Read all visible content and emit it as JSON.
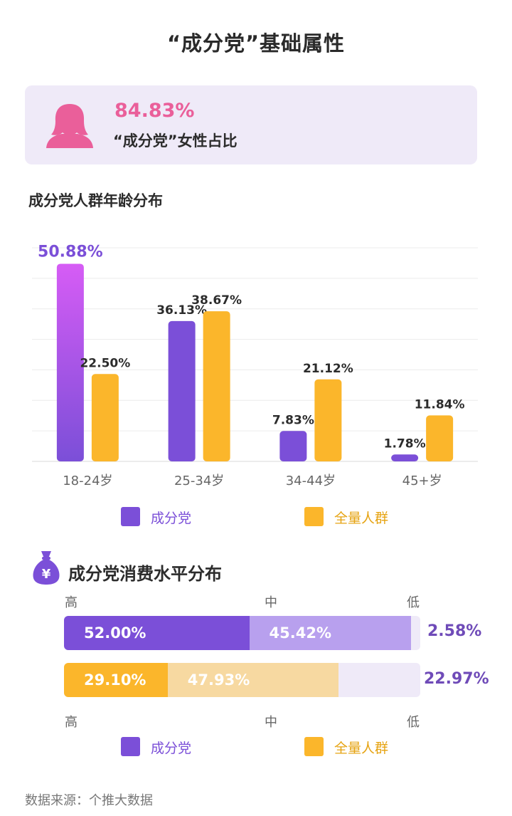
{
  "title": "“成分党”基础属性",
  "female": {
    "percent": "84.83%",
    "label": "“成分党”女性占比",
    "icon": "woman-icon",
    "color": "#ea5f9a"
  },
  "colors": {
    "chengfen": "#7b4fd8",
    "chengfen_top": "#d65cf5",
    "quanliang": "#fbb62b",
    "card_bg": "#efeaf8"
  },
  "legend": {
    "items": [
      "成分党",
      "全量人群"
    ]
  },
  "chart_data": [
    {
      "type": "bar",
      "title": "成分党人群年龄分布",
      "categories": [
        "18-24岁",
        "25-34岁",
        "34-44岁",
        "45+岁"
      ],
      "series": [
        {
          "name": "成分党",
          "values": [
            50.88,
            36.13,
            7.83,
            1.78
          ],
          "labels": [
            "50.88%",
            "36.13%",
            "7.83%",
            "1.78%"
          ]
        },
        {
          "name": "全量人群",
          "values": [
            22.5,
            38.67,
            21.12,
            11.84
          ],
          "labels": [
            "22.50%",
            "38.67%",
            "21.12%",
            "11.84%"
          ]
        }
      ],
      "ylim": [
        0,
        55
      ],
      "grid": true,
      "legend": "bottom"
    },
    {
      "type": "bar",
      "orientation": "horizontal",
      "stacked": true,
      "title": "成分党消费水平分布",
      "categories": [
        "高",
        "中",
        "低"
      ],
      "series": [
        {
          "name": "成分党",
          "values": [
            52.0,
            45.42,
            2.58
          ],
          "labels": [
            "52.00%",
            "45.42%",
            "2.58%"
          ]
        },
        {
          "name": "全量人群",
          "values": [
            29.1,
            47.93,
            22.97
          ],
          "labels": [
            "29.10%",
            "47.93%",
            "22.97%"
          ]
        }
      ],
      "legend": "bottom"
    }
  ],
  "spend": {
    "icon": "money-bag-icon",
    "levels": [
      "高",
      "中",
      "低"
    ]
  },
  "source": "数据来源：个推大数据"
}
